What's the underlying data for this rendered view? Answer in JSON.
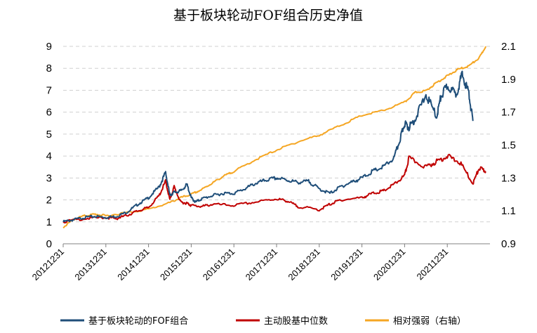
{
  "chart_data": {
    "type": "line",
    "title": "基于板块轮动FOF组合历史净值",
    "x_categories": [
      "20121231",
      "20131231",
      "20141231",
      "20151231",
      "20161231",
      "20171231",
      "20181231",
      "20191231",
      "20201231",
      "20211231"
    ],
    "left_axis": {
      "ticks": [
        "0",
        "1",
        "2",
        "3",
        "4",
        "5",
        "6",
        "7",
        "8",
        "9"
      ],
      "ylim": [
        0,
        9
      ]
    },
    "right_axis": {
      "ticks": [
        "0.9",
        "1.1",
        "1.3",
        "1.5",
        "1.7",
        "1.9",
        "2.1"
      ],
      "ylim": [
        0.9,
        2.1
      ]
    },
    "grid": true,
    "legend_position": "bottom",
    "series": [
      {
        "name": "基于板块轮动的FOF组合",
        "axis": "left",
        "color": "#1F4E79",
        "x": [
          0,
          0.25,
          0.5,
          0.75,
          1,
          1.25,
          1.5,
          1.75,
          2,
          2.25,
          2.4,
          2.5,
          2.6,
          2.75,
          2.9,
          3,
          3.1,
          3.25,
          3.5,
          3.75,
          4,
          4.25,
          4.5,
          4.75,
          5,
          5.25,
          5.5,
          5.75,
          6,
          6.25,
          6.5,
          6.75,
          7,
          7.25,
          7.5,
          7.75,
          7.9,
          8,
          8.1,
          8.25,
          8.5,
          8.75,
          8.85,
          9,
          9.2,
          9.35,
          9.5,
          9.6
        ],
        "y": [
          1.0,
          1.1,
          1.2,
          1.25,
          1.2,
          1.25,
          1.45,
          1.8,
          2.1,
          2.6,
          3.25,
          2.2,
          2.35,
          2.4,
          2.7,
          2.1,
          1.9,
          2.05,
          2.2,
          2.3,
          2.3,
          2.5,
          2.75,
          2.9,
          3.0,
          2.9,
          2.8,
          2.85,
          2.5,
          2.3,
          2.6,
          2.8,
          3.0,
          3.3,
          3.5,
          3.9,
          4.8,
          5.5,
          5.3,
          5.7,
          6.8,
          5.8,
          6.7,
          7.2,
          6.8,
          7.7,
          6.9,
          5.6
        ]
      },
      {
        "name": "主动股基中位数",
        "axis": "left",
        "color": "#C00000",
        "x": [
          0,
          0.5,
          1,
          1.25,
          1.5,
          1.75,
          2,
          2.25,
          2.4,
          2.5,
          2.6,
          2.75,
          2.9,
          3,
          3.25,
          3.5,
          4,
          4.5,
          5,
          5.25,
          5.5,
          6,
          6.25,
          6.5,
          7,
          7.25,
          7.5,
          7.75,
          8,
          8.1,
          8.5,
          8.75,
          9,
          9.3,
          9.6,
          9.75,
          9.9
        ],
        "y": [
          1.0,
          1.15,
          1.2,
          1.15,
          1.3,
          1.5,
          1.65,
          2.2,
          2.85,
          2.0,
          2.6,
          1.9,
          1.85,
          1.75,
          1.7,
          1.8,
          1.75,
          1.9,
          2.05,
          1.95,
          1.7,
          1.55,
          1.8,
          2.0,
          2.1,
          2.3,
          2.4,
          2.7,
          3.1,
          3.9,
          3.5,
          3.75,
          4.0,
          3.7,
          2.75,
          3.45,
          3.3
        ]
      },
      {
        "name": "相对强弱（右轴）",
        "axis": "right",
        "color": "#F5A623",
        "x": [
          0,
          0.25,
          0.5,
          0.75,
          1,
          1.5,
          2,
          2.5,
          2.75,
          3,
          3.25,
          3.5,
          3.75,
          4,
          4.5,
          5,
          5.5,
          6,
          6.5,
          7,
          7.5,
          8,
          8.25,
          8.5,
          8.75,
          9,
          9.25,
          9.5,
          9.75,
          9.9
        ],
        "y": [
          1.0,
          1.05,
          1.07,
          1.08,
          1.07,
          1.09,
          1.11,
          1.15,
          1.18,
          1.2,
          1.23,
          1.27,
          1.31,
          1.34,
          1.41,
          1.47,
          1.52,
          1.56,
          1.62,
          1.68,
          1.71,
          1.76,
          1.82,
          1.83,
          1.88,
          1.92,
          1.96,
          1.98,
          2.03,
          2.1
        ]
      }
    ]
  }
}
